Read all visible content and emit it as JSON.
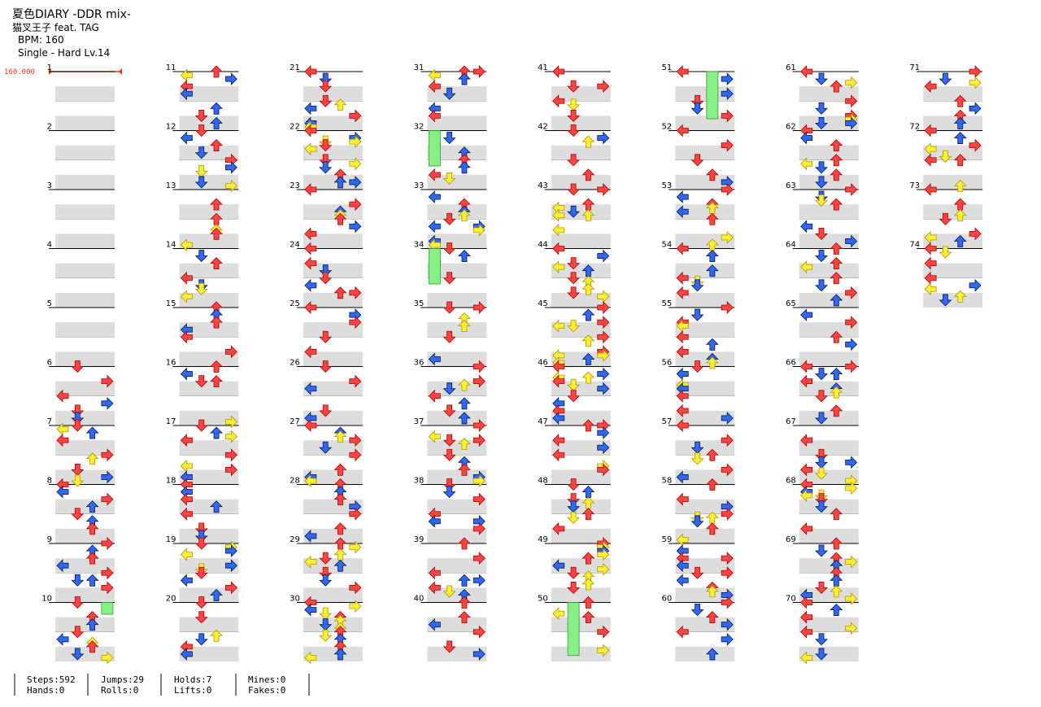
{
  "header": {
    "title": "夏色DIARY -DDR mix-",
    "artist": "猫叉王子 feat. TAG",
    "bpm": "BPM: 160",
    "difficulty": "Single - Hard  Lv.14"
  },
  "bpm_marker": "160.000",
  "measures": [
    1,
    2,
    3,
    4,
    5,
    6,
    7,
    8,
    9,
    10,
    11,
    12,
    13,
    14,
    15,
    16,
    17,
    18,
    19,
    20,
    21,
    22,
    23,
    24,
    25,
    26,
    27,
    28,
    29,
    30,
    31,
    32,
    33,
    34,
    35,
    36,
    37,
    38,
    39,
    40,
    41,
    42,
    43,
    44,
    45,
    46,
    47,
    48,
    49,
    50,
    51,
    52,
    53,
    54,
    55,
    56,
    57,
    58,
    59,
    60,
    61,
    62,
    63,
    64,
    65,
    66,
    67,
    68,
    69,
    70,
    71,
    72,
    73,
    74
  ],
  "stats": [
    [
      "Steps:592",
      "Hands:0"
    ],
    [
      "Jumps:29",
      "Rolls:0"
    ],
    [
      "Holds:7",
      "Lifts:0"
    ],
    [
      "Mines:0",
      "Fakes:0"
    ]
  ]
}
